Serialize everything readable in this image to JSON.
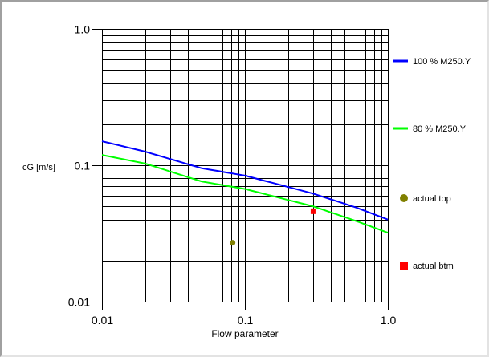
{
  "chart_data": {
    "type": "line",
    "title": "",
    "xlabel": "Flow parameter",
    "ylabel": "cG [m/s]",
    "xscale": "log",
    "yscale": "log",
    "xlim": [
      0.01,
      1.0
    ],
    "ylim": [
      0.01,
      1.0
    ],
    "xticks": [
      {
        "v": 0.01,
        "label": "0.01"
      },
      {
        "v": 0.1,
        "label": "0.1"
      },
      {
        "v": 1.0,
        "label": "1.0"
      }
    ],
    "yticks": [
      {
        "v": 0.01,
        "label": "0.01"
      },
      {
        "v": 0.1,
        "label": "0.1"
      },
      {
        "v": 1.0,
        "label": "1.0"
      }
    ],
    "grid": true,
    "legend_position": "right",
    "series": [
      {
        "name": "100 % M250.Y",
        "kind": "line",
        "color": "#0000ff",
        "x": [
          0.01,
          0.02,
          0.05,
          0.1,
          0.3,
          0.6,
          1.0
        ],
        "y": [
          0.15,
          0.126,
          0.095,
          0.084,
          0.062,
          0.049,
          0.04
        ]
      },
      {
        "name": "80 % M250.Y",
        "kind": "line",
        "color": "#00ff00",
        "x": [
          0.01,
          0.02,
          0.05,
          0.1,
          0.3,
          0.6,
          1.0
        ],
        "y": [
          0.119,
          0.103,
          0.076,
          0.067,
          0.05,
          0.039,
          0.032
        ]
      },
      {
        "name": "actual top",
        "kind": "circle",
        "color": "#808000",
        "x": [
          0.082
        ],
        "y": [
          0.027
        ]
      },
      {
        "name": "actual btm",
        "kind": "square",
        "color": "#ff0000",
        "x": [
          0.3
        ],
        "y": [
          0.046
        ]
      }
    ]
  }
}
